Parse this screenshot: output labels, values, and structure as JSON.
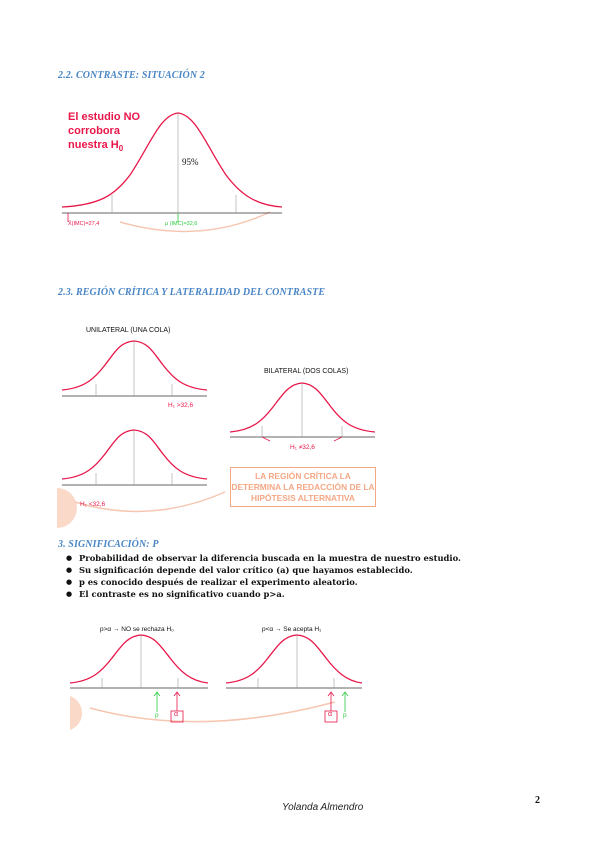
{
  "section_22": {
    "heading": "2.2. CONTRASTE: SITUACIÓN 2",
    "red_label_lines": [
      "El estudio NO",
      "corrobora",
      "nuestra H"
    ],
    "red_label_sub": "0",
    "percent_label": "95%",
    "axis_left_label": "X̄(IMC)=27,4",
    "axis_center_label": "μ (IMC)=32,6"
  },
  "section_23": {
    "heading": "2.3. REGIÓN CRÍTICA Y LATERALIDAD DEL CONTRASTE",
    "unilateral_title": "UNILATERAL (UNA COLA)",
    "h1_greater": "H₁ >32,6",
    "h1_less": "H₁ <32,6",
    "bilateral_title": "BILATERAL (DOS COLAS)",
    "h1_neq": "H₁ ≠32,6",
    "note_lines": [
      "LA REGIÓN CRÍTICA LA",
      "DETERMINA LA REDACCIÓN DE LA",
      "HIPÓTESIS ALTERNATIVA"
    ]
  },
  "section_3": {
    "heading": "3. SIGNIFICACIÓN: P",
    "bullets": [
      "Probabilidad de observar la diferencia buscada en la muestra de nuestro estudio.",
      "Su significación depende del valor crítico (a) que hayamos establecido.",
      "p es conocido después de realizar el experimento aleatorio.",
      "El contraste es no significativo cuando p>a."
    ],
    "left_caption": "p>α → NO se rechaza H₀",
    "right_caption": "p<α → Se acepta H₁",
    "p_label": "p",
    "alpha_label": "α"
  },
  "footer": {
    "author": "Yolanda Almendro",
    "page_number": "2"
  },
  "colors": {
    "heading": "#4a86c5",
    "curve": "#e8174a",
    "red_text": "#e8174a",
    "green": "#2ecc40",
    "peach": "#f4a886"
  }
}
